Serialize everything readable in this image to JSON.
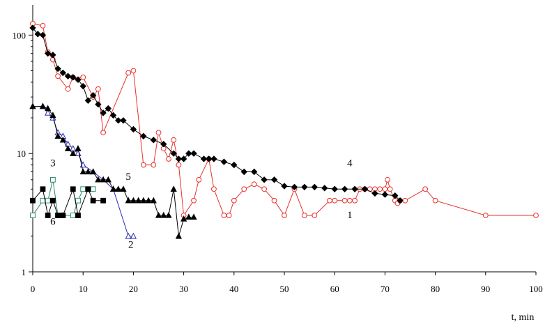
{
  "chart_data": {
    "type": "line",
    "title": "",
    "xlabel": "t, min",
    "ylabel": "",
    "yscale": "log",
    "xlim": [
      0,
      100
    ],
    "ylim": [
      1,
      180
    ],
    "x_ticks": [
      0,
      10,
      20,
      30,
      40,
      50,
      60,
      70,
      80,
      90,
      100
    ],
    "x_tick_labels": [
      "0",
      "10",
      "20",
      "30",
      "40",
      "50",
      "60",
      "70",
      "80",
      "90",
      "100"
    ],
    "y_ticks": [
      1,
      10,
      100
    ],
    "y_tick_labels": [
      "1",
      "10",
      "100"
    ],
    "grid": false,
    "legend": "none",
    "series": [
      {
        "label": "1",
        "color": "#e8302c",
        "marker": "circle-open",
        "x": [
          0,
          2,
          3,
          4,
          5,
          7,
          8,
          10,
          12,
          13,
          14,
          19,
          20,
          22,
          24,
          25,
          26,
          27,
          28,
          29,
          30,
          32,
          33,
          35,
          36,
          38,
          39,
          40,
          42,
          44,
          46,
          48,
          50,
          52,
          54,
          56,
          59,
          60,
          62,
          63,
          64,
          65,
          66,
          67,
          68,
          69,
          70,
          70.5,
          71,
          72,
          72.5,
          73,
          74,
          78,
          80,
          90,
          100
        ],
        "y": [
          125,
          120,
          72,
          62,
          45,
          35,
          44,
          44,
          30,
          35,
          15,
          48,
          50,
          8,
          8,
          15,
          11,
          9,
          13,
          8,
          3,
          4,
          6,
          9,
          5,
          3,
          3,
          4,
          5,
          5.5,
          5,
          4,
          3,
          5,
          3,
          3,
          4,
          4,
          4,
          4,
          4,
          5,
          5,
          5,
          5,
          5,
          5,
          6,
          5,
          4,
          3.8,
          4,
          4,
          5,
          4,
          3,
          3
        ]
      },
      {
        "label": "2",
        "color": "#2c2cb8",
        "marker": "triangle-open",
        "x": [
          0,
          2,
          3,
          4,
          5,
          6,
          7,
          8,
          9,
          10,
          12,
          14,
          16,
          19,
          20
        ],
        "y": [
          25,
          25,
          22,
          20,
          15,
          14,
          12,
          11,
          10,
          8,
          7,
          6,
          5,
          2,
          2
        ]
      },
      {
        "label": "3",
        "color": "#2a8a6a",
        "marker": "square-open",
        "x": [
          0,
          2,
          3,
          4,
          5,
          6,
          8,
          9,
          10,
          11,
          12
        ],
        "y": [
          3,
          4,
          4,
          6,
          3,
          3,
          3,
          4,
          5,
          5,
          5
        ]
      },
      {
        "label": "4",
        "color": "#000000",
        "marker": "diamond-filled",
        "x": [
          0,
          1,
          2,
          3,
          4,
          5,
          6,
          7,
          8,
          9,
          10,
          11,
          12,
          13,
          14,
          15,
          16,
          17,
          18,
          20,
          22,
          24,
          26,
          28,
          29,
          30,
          31,
          32,
          34,
          35,
          36,
          38,
          40,
          42,
          44,
          46,
          48,
          50,
          52,
          54,
          56,
          58,
          60,
          62,
          64,
          66,
          68,
          70,
          72,
          73
        ],
        "y": [
          115,
          102,
          100,
          70,
          68,
          52,
          48,
          45,
          44,
          42,
          37,
          28,
          31,
          26,
          22,
          24,
          21,
          19,
          19,
          16,
          14,
          13,
          12,
          10,
          9,
          9,
          10,
          10,
          9,
          9,
          9,
          8.5,
          8,
          7,
          7,
          6,
          6,
          5.3,
          5.2,
          5.2,
          5.2,
          5.1,
          5,
          5,
          5,
          5,
          4.6,
          4.5,
          4.4,
          4
        ]
      },
      {
        "label": "5",
        "color": "#000000",
        "marker": "triangle-filled",
        "x": [
          0,
          2,
          3,
          4,
          5,
          6,
          7,
          8,
          9,
          10,
          11,
          12,
          13,
          14,
          15,
          16,
          17,
          18,
          19,
          20,
          21,
          22,
          23,
          24,
          25,
          26,
          27,
          28,
          29,
          30,
          31,
          32
        ],
        "y": [
          25,
          25,
          24,
          21,
          14,
          13,
          11,
          10,
          11,
          7,
          7,
          7,
          6,
          6,
          6,
          5,
          5,
          5,
          4,
          4,
          4,
          4,
          4,
          4,
          3,
          3,
          3,
          5,
          2,
          2.8,
          2.9,
          2.9
        ]
      },
      {
        "label": "6",
        "color": "#000000",
        "marker": "square-filled",
        "x": [
          0,
          2,
          3,
          4,
          5,
          6,
          8,
          9,
          11,
          12,
          14
        ],
        "y": [
          4,
          5,
          3,
          4,
          3,
          3,
          5,
          3,
          5,
          4,
          4
        ]
      }
    ],
    "annotations": [
      {
        "text": "1",
        "x": 63,
        "y": 2.85
      },
      {
        "text": "2",
        "x": 19.5,
        "y": 1.6
      },
      {
        "text": "3",
        "x": 4,
        "y": 7.8
      },
      {
        "text": "4",
        "x": 63,
        "y": 7.8
      },
      {
        "text": "5",
        "x": 19,
        "y": 6.0
      },
      {
        "text": "6",
        "x": 4,
        "y": 2.5
      }
    ]
  }
}
